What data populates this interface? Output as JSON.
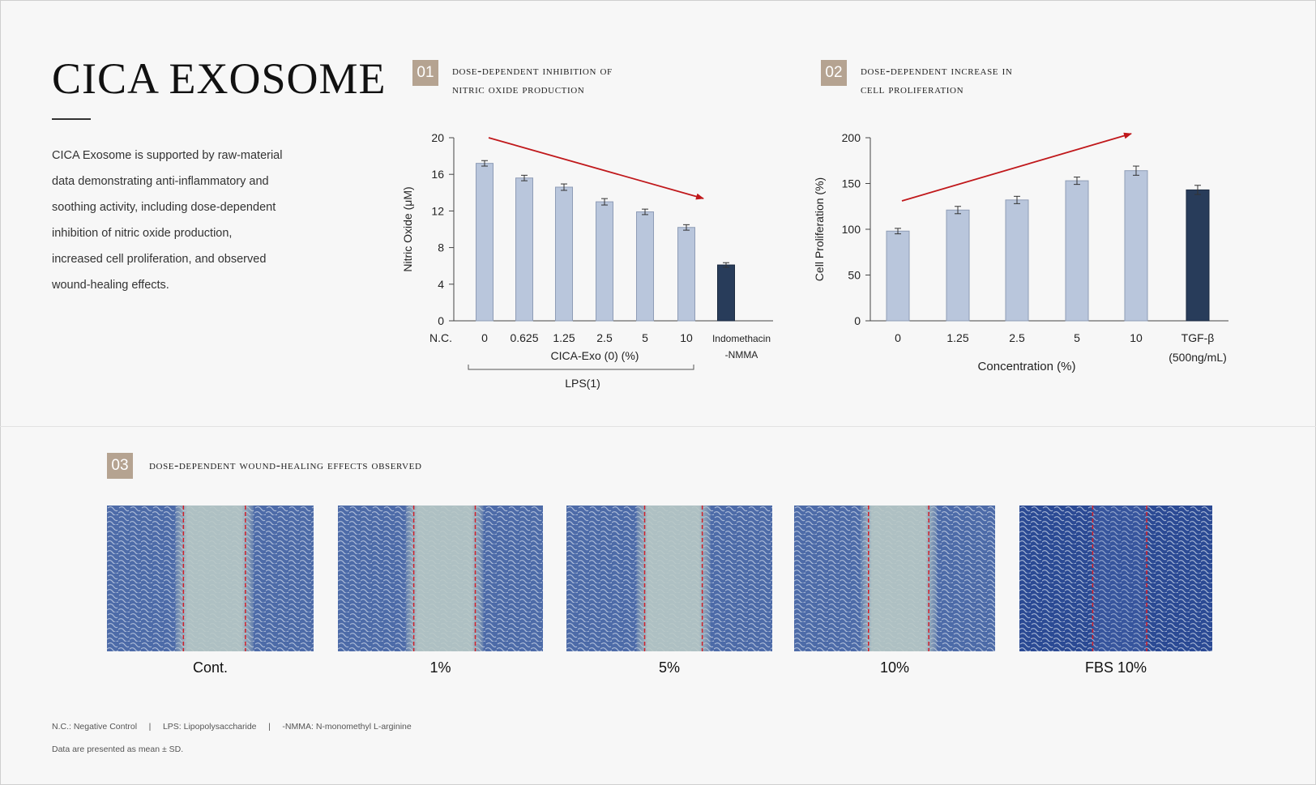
{
  "title": "CICA EXOSOME",
  "intro_lines": [
    "CICA Exosome is supported by raw-material",
    "data demonstrating anti-inflammatory and",
    "soothing activity, including dose-dependent",
    "inhibition of nitric oxide production,",
    "increased cell proliferation, and observed",
    "wound-healing effects."
  ],
  "sections": [
    {
      "num": "01",
      "title_lines": [
        "DOSE-DEPENDENT INHIBITION OF",
        "NITRIC OXIDE PRODUCTION"
      ]
    },
    {
      "num": "02",
      "title_lines": [
        "DOSE-DEPENDENT INCREASE IN",
        "CELL PROLIFERATION"
      ]
    },
    {
      "num": "03",
      "title_lines": [
        "DOSE-DEPENDENT WOUND-HEALING EFFECTS OBSERVED"
      ]
    }
  ],
  "colors": {
    "bar_light": "#b9c6dc",
    "bar_dark": "#283c5a",
    "arrow": "#c0181b",
    "badge": "#b5a391"
  },
  "chart_data": [
    {
      "type": "bar",
      "ylabel": "Nitric Oxide (μM)",
      "ylim": [
        0,
        20
      ],
      "yticks": [
        "0",
        "4",
        "8",
        "12",
        "16",
        "20"
      ],
      "categories": [
        "N.C.",
        "0",
        "0.625",
        "1.25",
        "2.5",
        "5",
        "10",
        "Indomethacin\n-NMMA"
      ],
      "values": [
        0,
        17.2,
        15.6,
        14.6,
        13.0,
        11.9,
        10.2,
        6.1
      ],
      "errors": [
        0,
        0.3,
        0.3,
        0.35,
        0.35,
        0.3,
        0.3,
        0.25
      ],
      "highlight": [
        false,
        false,
        false,
        false,
        false,
        false,
        false,
        true
      ],
      "group_label": "CICA-Exo (0) (%)",
      "bracket_label": "LPS(1)",
      "trend": "decreasing"
    },
    {
      "type": "bar",
      "ylabel": "Cell Proliferation (%)",
      "xlabel": "Concentration (%)",
      "ylim": [
        0,
        200
      ],
      "yticks": [
        "0",
        "50",
        "100",
        "150",
        "200"
      ],
      "categories": [
        "0",
        "1.25",
        "2.5",
        "5",
        "10",
        "TGF-β\n(500ng/mL)"
      ],
      "values": [
        98,
        121,
        132,
        153,
        164,
        143
      ],
      "errors": [
        3,
        4,
        4,
        4,
        5,
        5
      ],
      "highlight": [
        false,
        false,
        false,
        false,
        false,
        true
      ],
      "trend": "increasing"
    }
  ],
  "wound_images": [
    {
      "caption": "Cont.",
      "gap": 0.3
    },
    {
      "caption": "1%",
      "gap": 0.3
    },
    {
      "caption": "5%",
      "gap": 0.28
    },
    {
      "caption": "10%",
      "gap": 0.3
    },
    {
      "caption": "FBS 10%",
      "gap": 0.28
    }
  ],
  "footnotes": {
    "line1": "N.C.: Negative Control     |     LPS: Lipopolysaccharide     |     -NMMA: N-monomethyl L-arginine",
    "line2": "Data are presented as mean ± SD."
  }
}
